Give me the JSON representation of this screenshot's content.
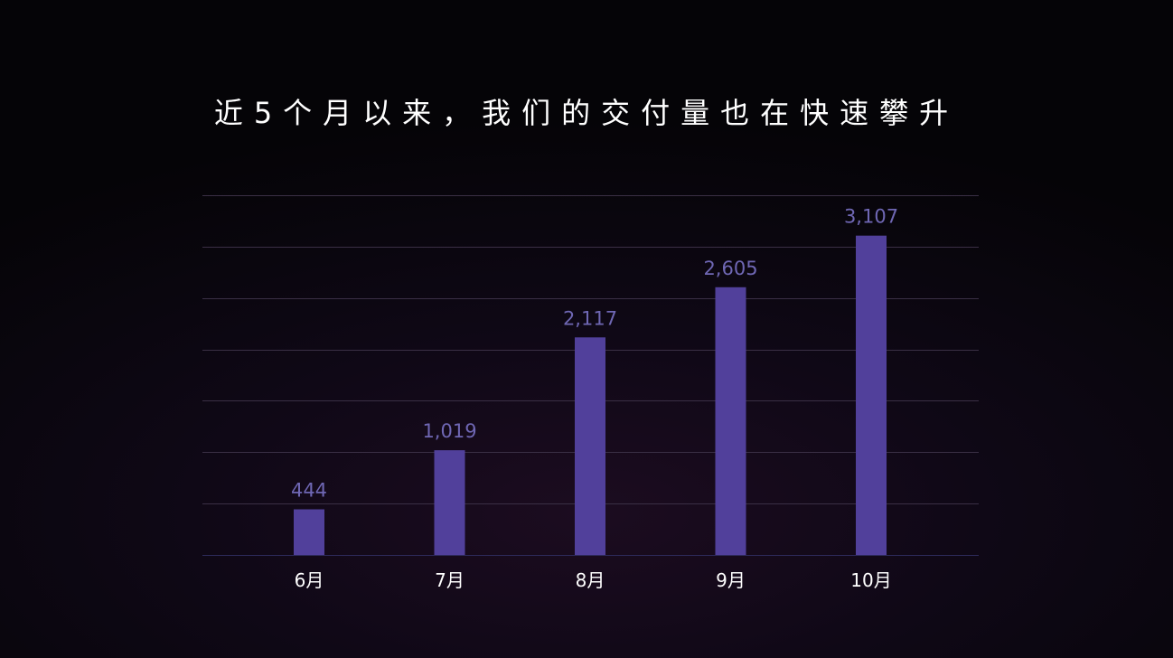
{
  "title": "近5个月以来，我们的交付量也在快速攀升",
  "colors": {
    "bar": "#51409b",
    "data_label": "#6f67b4",
    "tick_label": "#ffffff",
    "grid": "#3a2f45",
    "baseline": "#2d2a5a"
  },
  "chart_data": {
    "type": "bar",
    "title": "近5个月以来，我们的交付量也在快速攀升",
    "categories": [
      "6月",
      "7月",
      "8月",
      "9月",
      "10月"
    ],
    "values": [
      444,
      1019,
      2117,
      2605,
      3107
    ],
    "value_labels": [
      "444",
      "1,019",
      "2,117",
      "2,605",
      "3,107"
    ],
    "ylim": [
      0,
      3500
    ],
    "xlabel": "",
    "ylabel": "",
    "grid": true,
    "legend": "none"
  }
}
